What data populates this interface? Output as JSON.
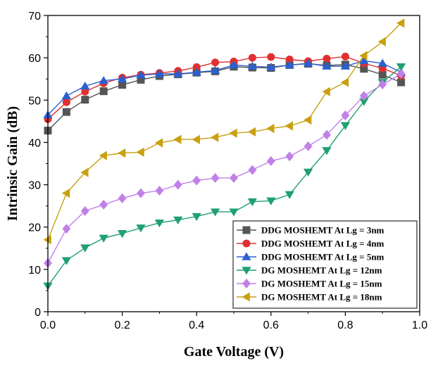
{
  "chart_data": {
    "type": "line",
    "title": "",
    "xlabel": "Gate Voltage (V)",
    "ylabel": "Intrinsic Gain (dB)",
    "xlim": [
      0.0,
      1.0
    ],
    "ylim": [
      0,
      70
    ],
    "xticks": [
      "0.0",
      "0.2",
      "0.4",
      "0.6",
      "0.8",
      "1.0"
    ],
    "yticks": [
      "0",
      "10",
      "20",
      "30",
      "40",
      "50",
      "60",
      "70"
    ],
    "legend_position": "bottom-right",
    "x": [
      0.0,
      0.05,
      0.1,
      0.15,
      0.2,
      0.25,
      0.3,
      0.35,
      0.4,
      0.45,
      0.5,
      0.55,
      0.6,
      0.65,
      0.7,
      0.75,
      0.8,
      0.85,
      0.9,
      0.95
    ],
    "series": [
      {
        "name": "DDG MOSHEMT At Lg = 3nm",
        "color": "#555555",
        "marker": "square",
        "values": [
          42.8,
          47.2,
          50.1,
          52.1,
          53.6,
          54.8,
          55.7,
          56.1,
          56.5,
          56.8,
          57.9,
          57.7,
          57.6,
          58.3,
          58.6,
          58.2,
          58.4,
          57.4,
          56.0,
          54.2
        ]
      },
      {
        "name": "DDG MOSHEMT At Lg = 4nm",
        "color": "#e03030",
        "marker": "circle",
        "values": [
          45.5,
          49.5,
          52.0,
          54.0,
          55.3,
          56.0,
          56.4,
          56.9,
          57.8,
          58.9,
          59.1,
          60.0,
          60.2,
          59.6,
          59.2,
          59.8,
          60.3,
          58.7,
          57.5,
          55.8
        ]
      },
      {
        "name": "DDG MOSHEMT At Lg = 5nm",
        "color": "#2a60d0",
        "marker": "triangle-up",
        "values": [
          46.5,
          51.0,
          53.3,
          54.6,
          55.0,
          55.9,
          56.2,
          56.2,
          56.6,
          57.0,
          58.3,
          58.0,
          57.8,
          58.3,
          58.7,
          58.0,
          58.0,
          59.3,
          58.7,
          56.6
        ]
      },
      {
        "name": "DG MOSHEMT At Lg = 12nm",
        "color": "#20a070",
        "marker": "triangle-down",
        "values": [
          6.1,
          12.1,
          15.1,
          17.4,
          18.5,
          19.8,
          21.0,
          21.7,
          22.5,
          23.6,
          23.6,
          26.0,
          26.2,
          27.7,
          33.0,
          38.1,
          44.0,
          49.7,
          54.2,
          57.9
        ]
      },
      {
        "name": "DG MOSHEMT At Lg = 15nm",
        "color": "#c080e8",
        "marker": "diamond",
        "values": [
          11.5,
          19.6,
          23.8,
          25.3,
          26.8,
          28.0,
          28.6,
          30.0,
          31.0,
          31.6,
          31.6,
          33.5,
          35.6,
          36.7,
          39.1,
          41.8,
          46.4,
          51.0,
          53.7,
          56.2
        ]
      },
      {
        "name": "DG MOSHEMT At Lg = 18nm",
        "color": "#c8a010",
        "marker": "triangle-left",
        "values": [
          17.0,
          28.0,
          32.9,
          36.9,
          37.5,
          37.7,
          39.9,
          40.7,
          40.7,
          41.2,
          42.2,
          42.5,
          43.3,
          43.9,
          45.3,
          52.0,
          54.2,
          60.5,
          63.8,
          68.2
        ]
      }
    ]
  }
}
